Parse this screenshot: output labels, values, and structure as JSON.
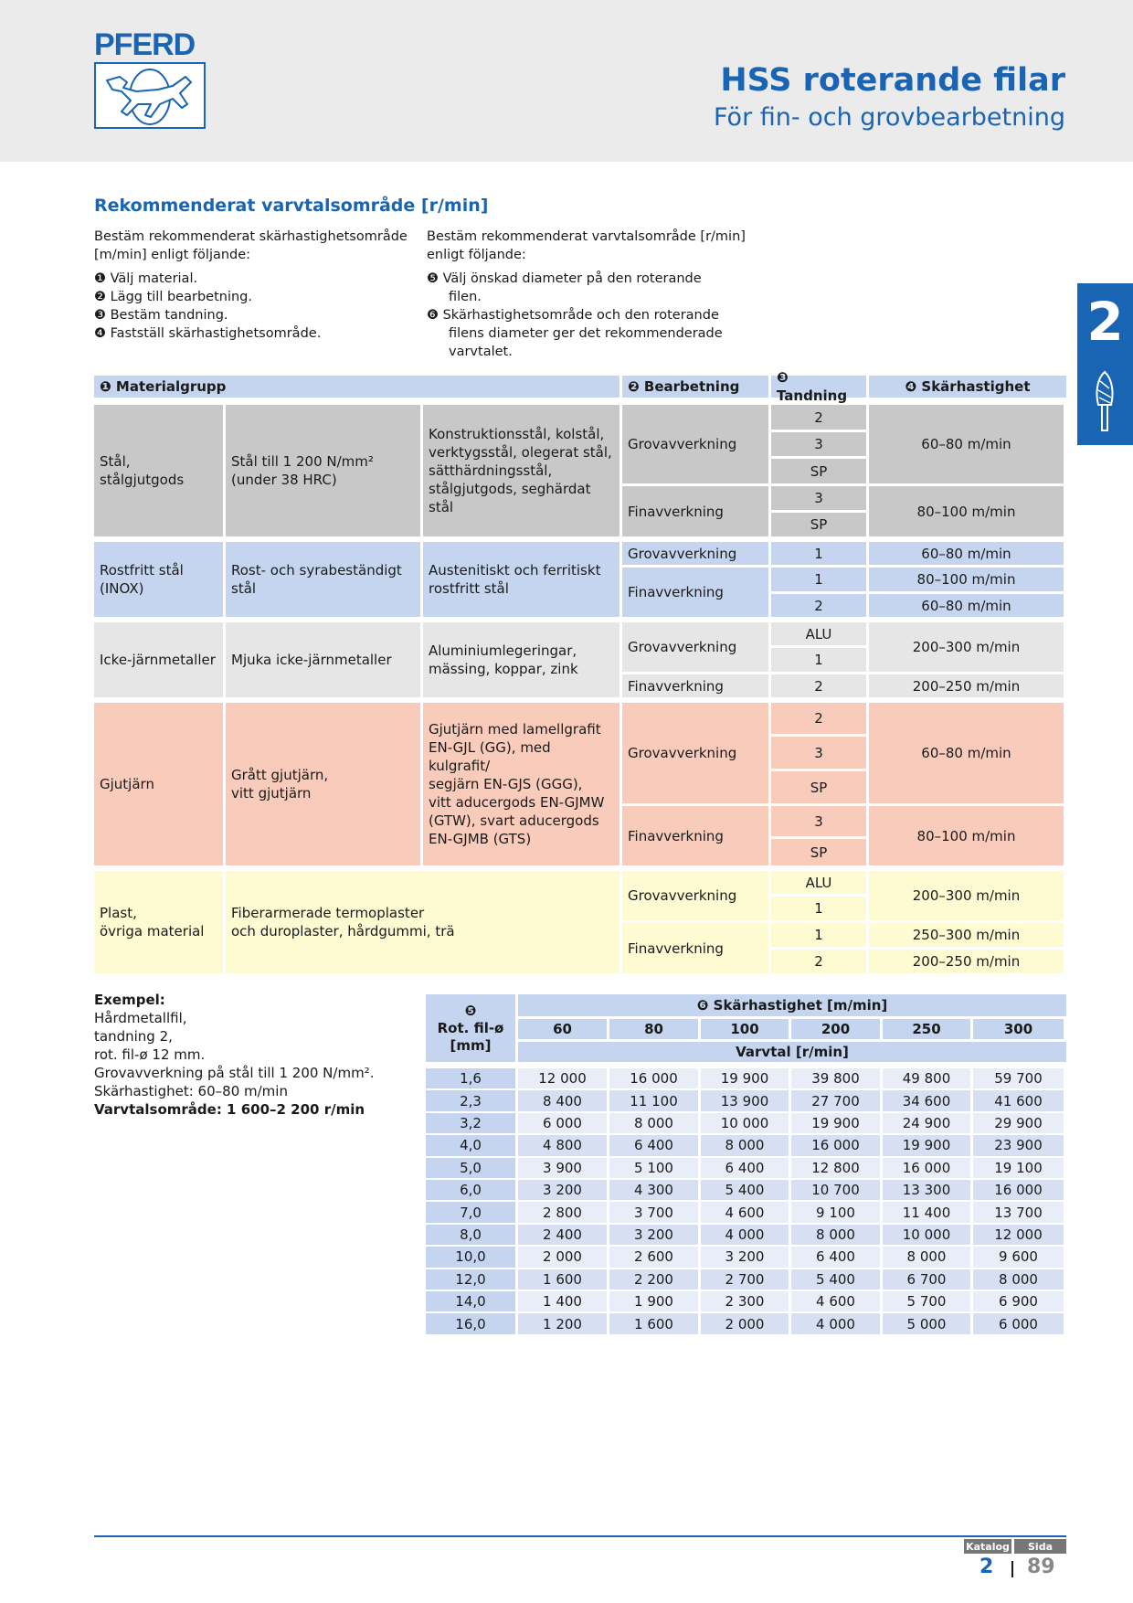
{
  "header": {
    "brand": "PFERD",
    "title": "HSS roterande filar",
    "subtitle": "För fin- och grovbearbetning"
  },
  "section_title": "Rekommenderat varvtalsområde [r/min]",
  "intro_left": {
    "lead": [
      "Bestäm rekommenderat skärhastighetsområde",
      "[m/min] enligt följande:"
    ],
    "steps": [
      "❶ Välj material.",
      "❷ Lägg till bearbetning.",
      "❸ Bestäm tandning.",
      "❹ Fastställ skärhastighetsområde."
    ]
  },
  "intro_right": {
    "lead": [
      "Bestäm rekommenderat varvtalsområde [r/min]",
      "enligt följande:"
    ],
    "steps": [
      "❺ Välj önskad diameter på den roterande",
      "filen.",
      "❻ Skärhastighetsområde och den roterande",
      "filens diameter ger det rekommenderade",
      "varvtalet."
    ]
  },
  "tab": {
    "number": "2"
  },
  "colors": {
    "accent": "#1a64b4",
    "steel": "#c8c8c8",
    "inox": "#c5d5ef",
    "nonferrous": "#e6e6e6",
    "cast_iron": "#f9cbba",
    "plastic": "#fefad2"
  },
  "material_table": {
    "headers": [
      "❶ Materialgrupp",
      "❷ Bearbetning",
      "❸ Tandning",
      "❹ Skärhastighet"
    ],
    "groups": [
      {
        "name": "Stål,\nstålgjutgods",
        "sub": "Stål till 1 200 N/mm²\n(under 38 HRC)",
        "detail": "Konstruktionsstål, kolstål,\nverktygsstål, olegerat stål,\nsätthärdningsstål,\nstålgjutgods, seghärdat stål",
        "ops": [
          "Grovavverkning",
          "Finavverkning"
        ],
        "teeth": [
          "2",
          "3",
          "SP",
          "3",
          "SP"
        ],
        "speeds": [
          "60–80 m/min",
          "80–100 m/min"
        ]
      },
      {
        "name": "Rostfritt stål\n(INOX)",
        "sub": "Rost- och syrabeständigt stål",
        "detail": "Austenitiskt och ferritiskt\nrostfritt stål",
        "ops": [
          "Grovavverkning",
          "Finavverkning"
        ],
        "teeth": [
          "1",
          "1",
          "2"
        ],
        "speeds": [
          "60–80 m/min",
          "80–100 m/min",
          "60–80 m/min"
        ]
      },
      {
        "name": "Icke-järnmetaller",
        "sub": "Mjuka icke-järnmetaller",
        "detail": "Aluminiumlegeringar,\nmässing, koppar, zink",
        "ops": [
          "Grovavverkning",
          "Finavverkning"
        ],
        "teeth": [
          "ALU",
          "1",
          "2"
        ],
        "speeds": [
          "200–300 m/min",
          "200–250 m/min"
        ]
      },
      {
        "name": "Gjutjärn",
        "sub": "Grått gjutjärn,\nvitt gjutjärn",
        "detail": "Gjutjärn med lamellgrafit\nEN-GJL (GG), med kulgrafit/\nsegjärn EN-GJS (GGG),\nvitt aducergods EN-GJMW\n(GTW), svart aducergods\nEN-GJMB (GTS)",
        "ops": [
          "Grovavverkning",
          "Finavverkning"
        ],
        "teeth": [
          "2",
          "3",
          "SP",
          "3",
          "SP"
        ],
        "speeds": [
          "60–80 m/min",
          "80–100 m/min"
        ]
      },
      {
        "name": "Plast,\növriga material",
        "sub": "Fiberarmerade termoplaster\noch duroplaster, hårdgummi, trä",
        "detail": "",
        "ops": [
          "Grovavverkning",
          "Finavverkning"
        ],
        "teeth": [
          "ALU",
          "1",
          "1",
          "2"
        ],
        "speeds": [
          "200–300 m/min",
          "250–300 m/min",
          "200–250 m/min"
        ]
      }
    ]
  },
  "example": {
    "title": "Exempel:",
    "lines": [
      "Hårdmetallfil,",
      "tandning 2,",
      "rot. fil-ø 12 mm.",
      "Grovavverkning på stål till 1 200 N/mm².",
      "Skärhastighet: 60–80 m/min"
    ],
    "result": "Varvtalsområde: 1 600–2 200 r/min"
  },
  "speed_table": {
    "diam_header": [
      "❺",
      "Rot. fil-ø",
      "[mm]"
    ],
    "speed_header": "❻ Skärhastighet [m/min]",
    "speeds": [
      "60",
      "80",
      "100",
      "200",
      "250",
      "300"
    ],
    "unit_header": "Varvtal [r/min]",
    "rows": [
      [
        "1,6",
        "12 000",
        "16 000",
        "19 900",
        "39 800",
        "49 800",
        "59 700"
      ],
      [
        "2,3",
        "8 400",
        "11 100",
        "13 900",
        "27 700",
        "34 600",
        "41 600"
      ],
      [
        "3,2",
        "6 000",
        "8 000",
        "10 000",
        "19 900",
        "24 900",
        "29 900"
      ],
      [
        "4,0",
        "4 800",
        "6 400",
        "8 000",
        "16 000",
        "19 900",
        "23 900"
      ],
      [
        "5,0",
        "3 900",
        "5 100",
        "6 400",
        "12 800",
        "16 000",
        "19 100"
      ],
      [
        "6,0",
        "3 200",
        "4 300",
        "5 400",
        "10 700",
        "13 300",
        "16 000"
      ],
      [
        "7,0",
        "2 800",
        "3 700",
        "4 600",
        "9 100",
        "11 400",
        "13 700"
      ],
      [
        "8,0",
        "2 400",
        "3 200",
        "4 000",
        "8 000",
        "10 000",
        "12 000"
      ],
      [
        "10,0",
        "2 000",
        "2 600",
        "3 200",
        "6 400",
        "8 000",
        "9 600"
      ],
      [
        "12,0",
        "1 600",
        "2 200",
        "2 700",
        "5 400",
        "6 700",
        "8 000"
      ],
      [
        "14,0",
        "1 400",
        "1 900",
        "2 300",
        "4 600",
        "5 700",
        "6 900"
      ],
      [
        "16,0",
        "1 200",
        "1 600",
        "2 000",
        "4 000",
        "5 000",
        "6 000"
      ]
    ]
  },
  "footer": {
    "label_catalog": "Katalog",
    "label_page": "Sida",
    "catalog": "2",
    "page": "89"
  }
}
